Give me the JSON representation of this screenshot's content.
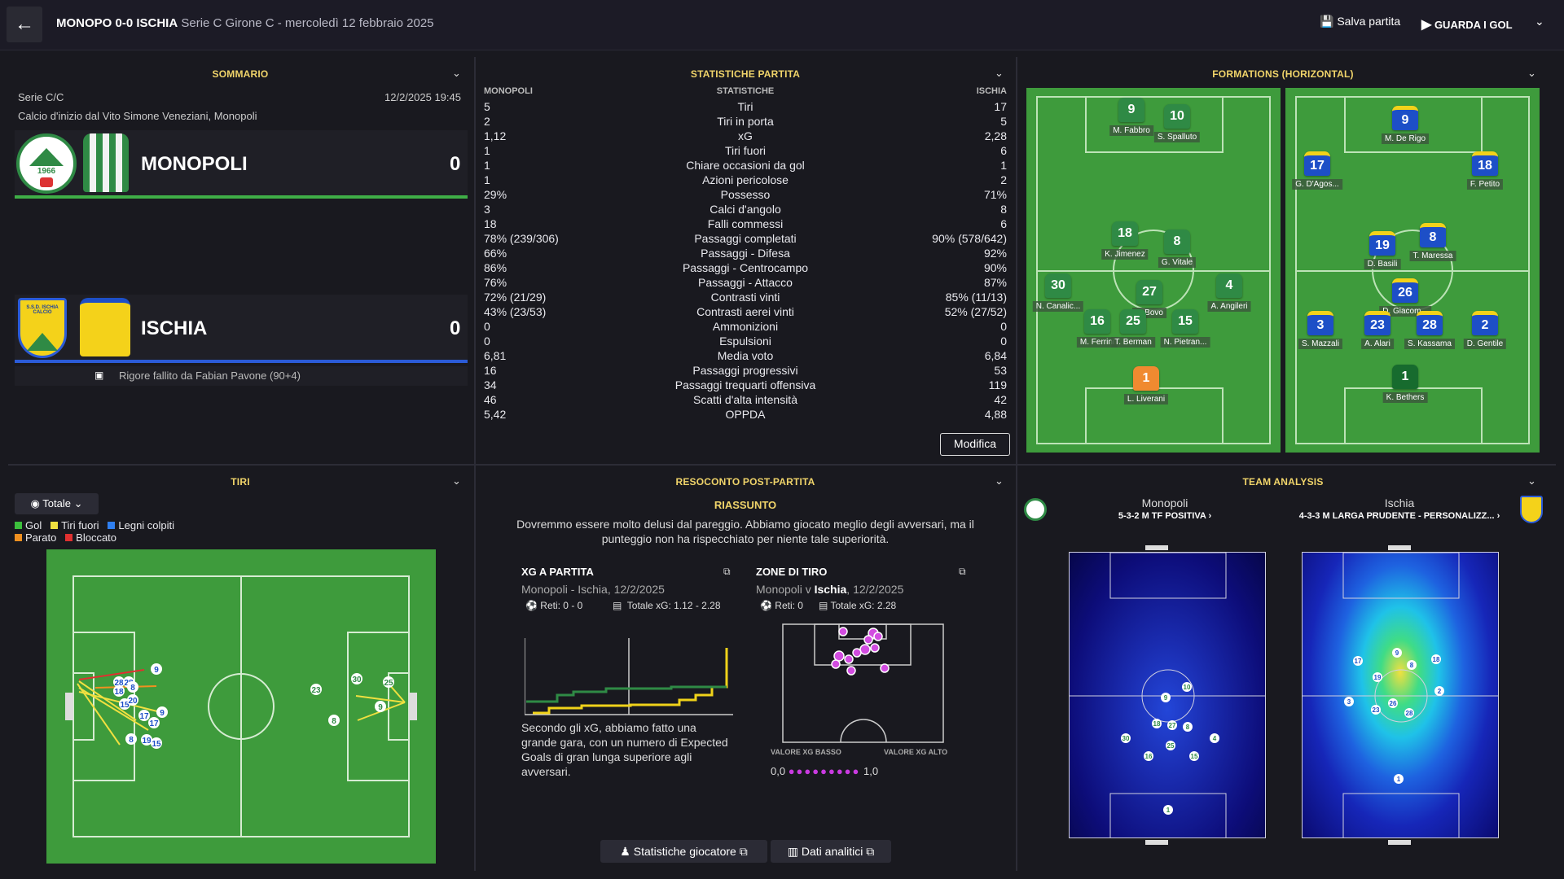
{
  "header": {
    "match": "MONOPO 0-0 ISCHIA",
    "competition": "Serie C Girone C - mercoledì 12 febbraio 2025",
    "save": "Salva partita",
    "watch": "GUARDA I GOL"
  },
  "summary": {
    "title": "SOMMARIO",
    "league": "Serie C/C",
    "datetime": "12/2/2025 19:45",
    "kickoff": "Calcio d'inizio dal Vito Simone Veneziani, Monopoli",
    "home": {
      "name": "MONOPOLI",
      "score": "0",
      "logo_year": "1966"
    },
    "away": {
      "name": "ISCHIA",
      "score": "0",
      "logo_text": "S.S.D. ISCHIA CALCIO"
    },
    "event": "Rigore fallito da Fabian Pavone (90+4)",
    "home_color": "#3fae47",
    "away_color": "#2b5bd7"
  },
  "stats": {
    "title": "STATISTICHE PARTITA",
    "col_home": "MONOPOLI",
    "col_mid": "STATISTICHE",
    "col_away": "ISCHIA",
    "button": "Modifica",
    "rows": [
      {
        "h": "5",
        "n": "Tiri",
        "a": "17"
      },
      {
        "h": "2",
        "n": "Tiri in porta",
        "a": "5"
      },
      {
        "h": "1,12",
        "n": "xG",
        "a": "2,28"
      },
      {
        "h": "1",
        "n": "Tiri fuori",
        "a": "6"
      },
      {
        "h": "1",
        "n": "Chiare occasioni da gol",
        "a": "1"
      },
      {
        "h": "1",
        "n": "Azioni pericolose",
        "a": "2"
      },
      {
        "h": "29%",
        "n": "Possesso",
        "a": "71%"
      },
      {
        "h": "3",
        "n": "Calci d'angolo",
        "a": "8"
      },
      {
        "h": "18",
        "n": "Falli commessi",
        "a": "6"
      },
      {
        "h": "78% (239/306)",
        "n": "Passaggi completati",
        "a": "90% (578/642)"
      },
      {
        "h": "66%",
        "n": "Passaggi - Difesa",
        "a": "92%"
      },
      {
        "h": "86%",
        "n": "Passaggi - Centrocampo",
        "a": "90%"
      },
      {
        "h": "76%",
        "n": "Passaggi - Attacco",
        "a": "87%"
      },
      {
        "h": "72% (21/29)",
        "n": "Contrasti vinti",
        "a": "85% (11/13)"
      },
      {
        "h": "43% (23/53)",
        "n": "Contrasti aerei vinti",
        "a": "52% (27/52)"
      },
      {
        "h": "0",
        "n": "Ammonizioni",
        "a": "0"
      },
      {
        "h": "0",
        "n": "Espulsioni",
        "a": "0"
      },
      {
        "h": "6,81",
        "n": "Media voto",
        "a": "6,84"
      },
      {
        "h": "16",
        "n": "Passaggi progressivi",
        "a": "53"
      },
      {
        "h": "34",
        "n": "Passaggi trequarti offensiva",
        "a": "119"
      },
      {
        "h": "46",
        "n": "Scatti d'alta intensità",
        "a": "42"
      },
      {
        "h": "5,42",
        "n": "OPPDA",
        "a": "4,88"
      }
    ]
  },
  "formations": {
    "title": "FORMATIONS (HORIZONTAL)",
    "home": [
      {
        "n": "9",
        "p": "M. Fabbro"
      },
      {
        "n": "10",
        "p": "S. Spalluto"
      },
      {
        "n": "18",
        "p": "K. Jimenez"
      },
      {
        "n": "8",
        "p": "G. Vitale"
      },
      {
        "n": "30",
        "p": "N. Canalic..."
      },
      {
        "n": "27",
        "p": "L. Bovo"
      },
      {
        "n": "4",
        "p": "A. Angileri"
      },
      {
        "n": "16",
        "p": "M. Ferrini"
      },
      {
        "n": "25",
        "p": "T. Berman"
      },
      {
        "n": "15",
        "p": "N. Pietran..."
      },
      {
        "n": "1",
        "p": "L. Liverani"
      }
    ],
    "away": [
      {
        "n": "9",
        "p": "M. De Rigo"
      },
      {
        "n": "17",
        "p": "G. D'Agos..."
      },
      {
        "n": "18",
        "p": "F. Petito"
      },
      {
        "n": "19",
        "p": "D. Basili"
      },
      {
        "n": "8",
        "p": "T. Maressa"
      },
      {
        "n": "26",
        "p": "D. Giacom..."
      },
      {
        "n": "3",
        "p": "S. Mazzali"
      },
      {
        "n": "23",
        "p": "A. Alari"
      },
      {
        "n": "28",
        "p": "S. Kassama"
      },
      {
        "n": "2",
        "p": "D. Gentile"
      },
      {
        "n": "1",
        "p": "K. Bethers"
      }
    ]
  },
  "shots": {
    "title": "TIRI",
    "filter": "Totale",
    "legend": [
      {
        "label": "Gol",
        "color": "#3cbf3c"
      },
      {
        "label": "Tiri fuori",
        "color": "#f0e040"
      },
      {
        "label": "Legni colpiti",
        "color": "#2f7ff0"
      },
      {
        "label": "Parato",
        "color": "#f09020"
      },
      {
        "label": "Bloccato",
        "color": "#e03030"
      }
    ]
  },
  "report": {
    "title": "RESOCONTO POST-PARTITA",
    "subtitle": "RIASSUNTO",
    "text": "Dovremmo essere molto delusi dal pareggio. Abbiamo giocato meglio degli avversari, ma il punteggio non ha rispecchiato per niente tale superiorità.",
    "xg": {
      "title": "XG A PARTITA",
      "sub": "Monopoli - Ischia, 12/2/2025",
      "goals": "Reti: 0 - 0",
      "total": "Totale xG: 1.12 - 2.28",
      "desc": "Secondo gli xG, abbiamo fatto una grande gara, con un numero di Expected Goals di gran lunga superiore agli avversari."
    },
    "zones": {
      "title": "ZONE DI TIRO",
      "sub_a": "Monopoli v ",
      "sub_b": "Ischia",
      "sub_c": ", 12/2/2025",
      "goals": "Reti: 0",
      "total": "Totale xG: 2.28",
      "low": "VALORE XG BASSO",
      "high": "VALORE XG ALTO",
      "min": "0,0",
      "max": "1,0"
    },
    "btn_players": "Statistiche giocatore",
    "btn_data": "Dati analitici"
  },
  "analysis": {
    "title": "TEAM ANALYSIS",
    "home": {
      "name": "Monopoli",
      "tactic": "5-3-2 M TF POSITIVA"
    },
    "away": {
      "name": "Ischia",
      "tactic": "4-3-3 M LARGA PRUDENTE - PERSONALIZZ..."
    }
  }
}
